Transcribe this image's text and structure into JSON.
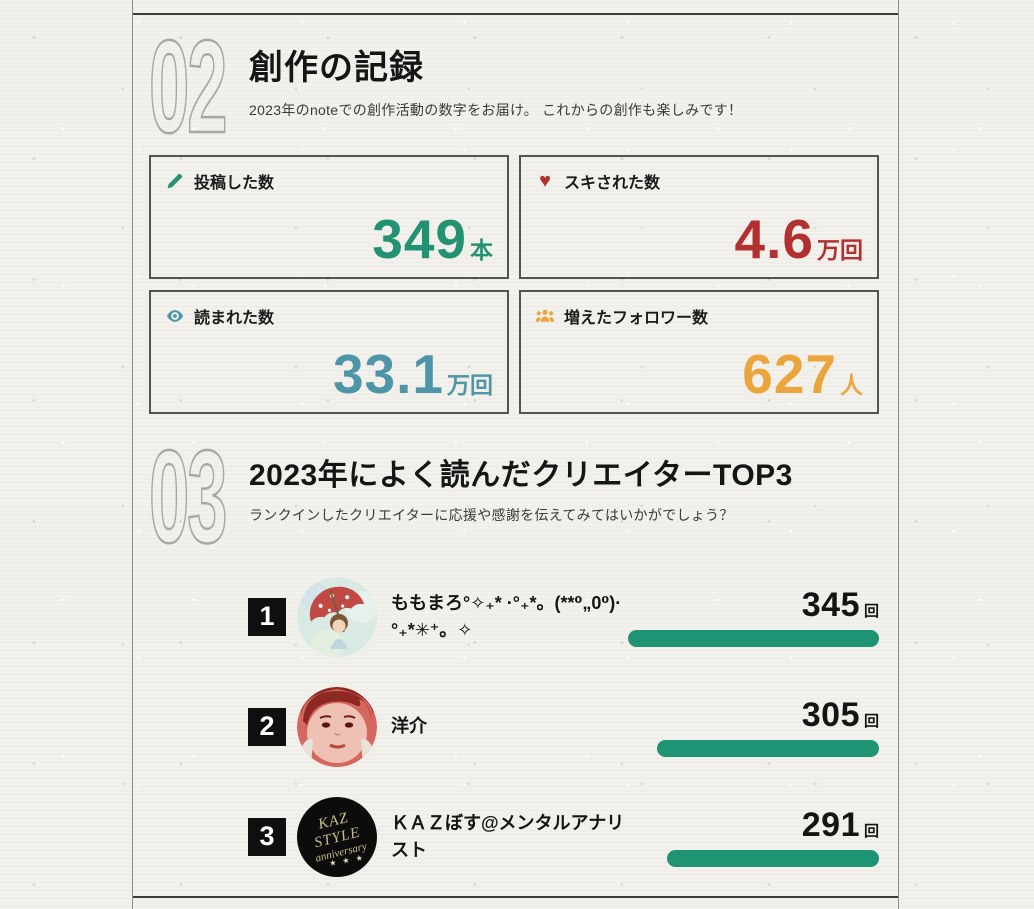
{
  "section_creation": {
    "number": "02",
    "title": "創作の記録",
    "subtitle": "2023年のnoteでの創作活動の数字をお届け。 これからの創作も楽しみです！",
    "cards": [
      {
        "icon": "pencil-icon",
        "label": "投稿した数",
        "value": "349",
        "unit": "本",
        "color": "#239273"
      },
      {
        "icon": "heart-icon",
        "label": "スキされた数",
        "value": "4.6",
        "unit": "万回",
        "color": "#b23130",
        "heart_glyph": "♥"
      },
      {
        "icon": "eye-icon",
        "label": "読まれた数",
        "value": "33.1",
        "unit": "万回",
        "color": "#4e96a7"
      },
      {
        "icon": "people-icon",
        "label": "増えたフォロワー数",
        "value": "627",
        "unit": "人",
        "color": "#eaa63c"
      }
    ]
  },
  "section_ranking": {
    "number": "03",
    "title": "2023年によく読んだクリエイターTOP3",
    "subtitle": "ランクインしたクリエイターに応援や感謝を伝えてみてはいかがでしょう？",
    "bar_color": "#1e9474",
    "max_count": 345,
    "items": [
      {
        "rank": "1",
        "name": "ももまろ°✧₊* ·°₊*。(**⁰„0⁰)· °₊*✳⁺。✧",
        "count": 345,
        "unit": "回",
        "avatar": "red-umbrella-illustration"
      },
      {
        "rank": "2",
        "name": "洋介",
        "count": 305,
        "unit": "回",
        "avatar": "red-tone-portrait-photo"
      },
      {
        "rank": "3",
        "name": "ＫＡＺぼす@メンタルアナリスト",
        "count": 291,
        "unit": "回",
        "avatar": "kaz-style-anniversary-logo",
        "avatar_text1": "KAZ STYLE",
        "avatar_text2": "anniversary",
        "avatar_stars": "★ ★ ★"
      }
    ]
  }
}
